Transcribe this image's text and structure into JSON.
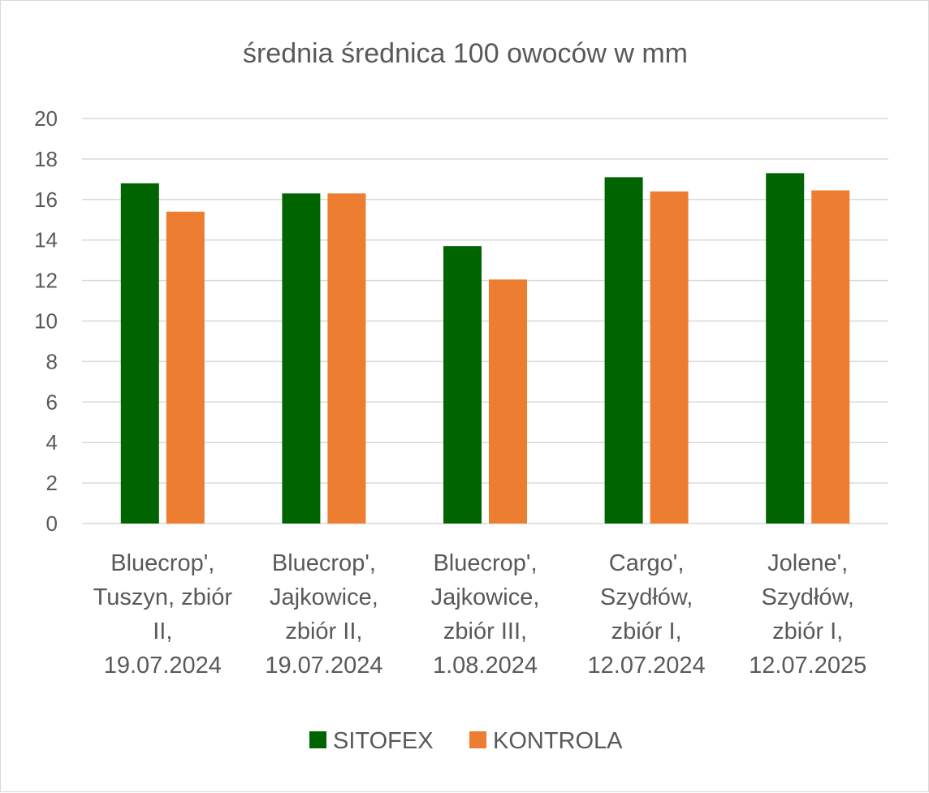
{
  "chart_data": {
    "type": "bar",
    "title": "średnia średnica 100 owoców w mm",
    "xlabel": "",
    "ylabel": "",
    "ylim": [
      0,
      20
    ],
    "yticks": [
      0,
      2,
      4,
      6,
      8,
      10,
      12,
      14,
      16,
      18,
      20
    ],
    "grid": true,
    "legend_position": "bottom",
    "categories": [
      [
        "Bluecrop',",
        "Tuszyn, zbiór",
        "II,",
        "19.07.2024"
      ],
      [
        "Bluecrop',",
        "Jajkowice,",
        "zbiór II,",
        "19.07.2024"
      ],
      [
        "Bluecrop',",
        "Jajkowice,",
        "zbiór III,",
        "1.08.2024"
      ],
      [
        "Cargo',",
        "Szydłów,",
        "zbiór I,",
        "12.07.2024"
      ],
      [
        "Jolene',",
        "Szydłów,",
        "zbiór I,",
        "12.07.2025"
      ]
    ],
    "series": [
      {
        "name": "SITOFEX",
        "color": "#006400",
        "values": [
          16.8,
          16.3,
          13.7,
          17.1,
          17.3
        ]
      },
      {
        "name": "KONTROLA",
        "color": "#ED7D31",
        "values": [
          15.4,
          16.3,
          12.05,
          16.4,
          16.45
        ]
      }
    ]
  }
}
